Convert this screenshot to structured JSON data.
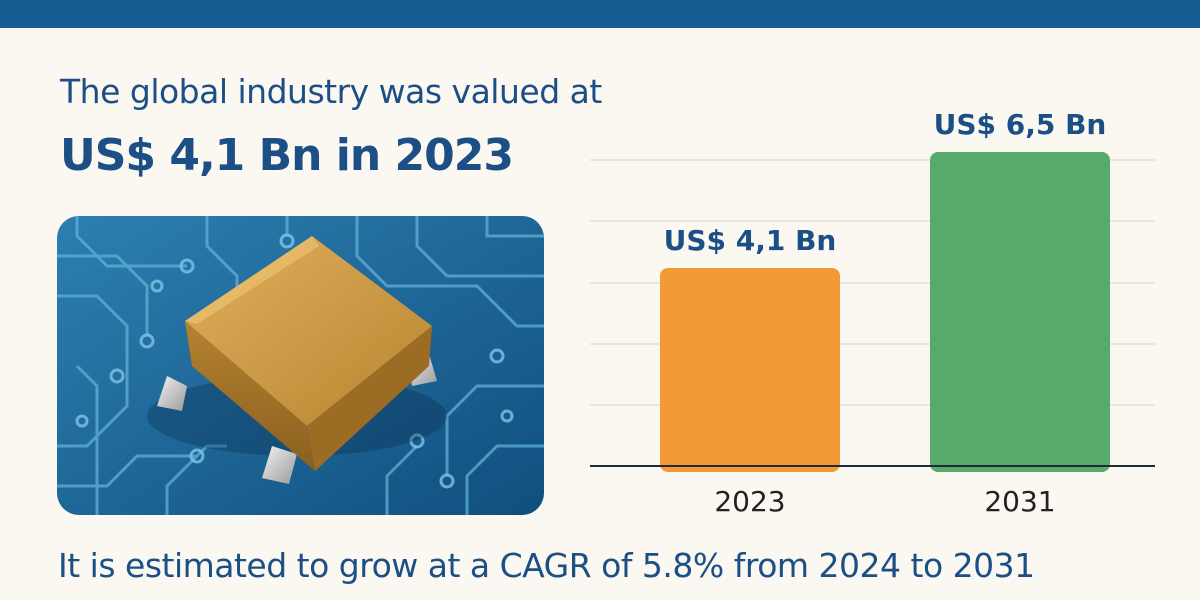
{
  "header": {
    "line1": "The global industry was valued at",
    "line2": "US$ 4,1 Bn in 2023"
  },
  "image": {
    "icon": "circuit-board-chip-icon"
  },
  "chart_data": {
    "type": "bar",
    "categories": [
      "2023",
      "2031"
    ],
    "values": [
      4.1,
      6.5
    ],
    "data_labels": [
      "US$ 4,1 Bn",
      "US$ 6,5 Bn"
    ],
    "bar_colors": [
      "#f29a35",
      "#56aa6c"
    ],
    "ylim": [
      0,
      6.5
    ],
    "grid": true,
    "title": "",
    "xlabel": "",
    "ylabel": ""
  },
  "footer": {
    "text": "It is estimated to grow at a CAGR of 5.8% from 2024 to 2031"
  },
  "colors": {
    "top_bar": "#165d94",
    "text": "#1b4f86",
    "background": "#fbf7f1"
  }
}
